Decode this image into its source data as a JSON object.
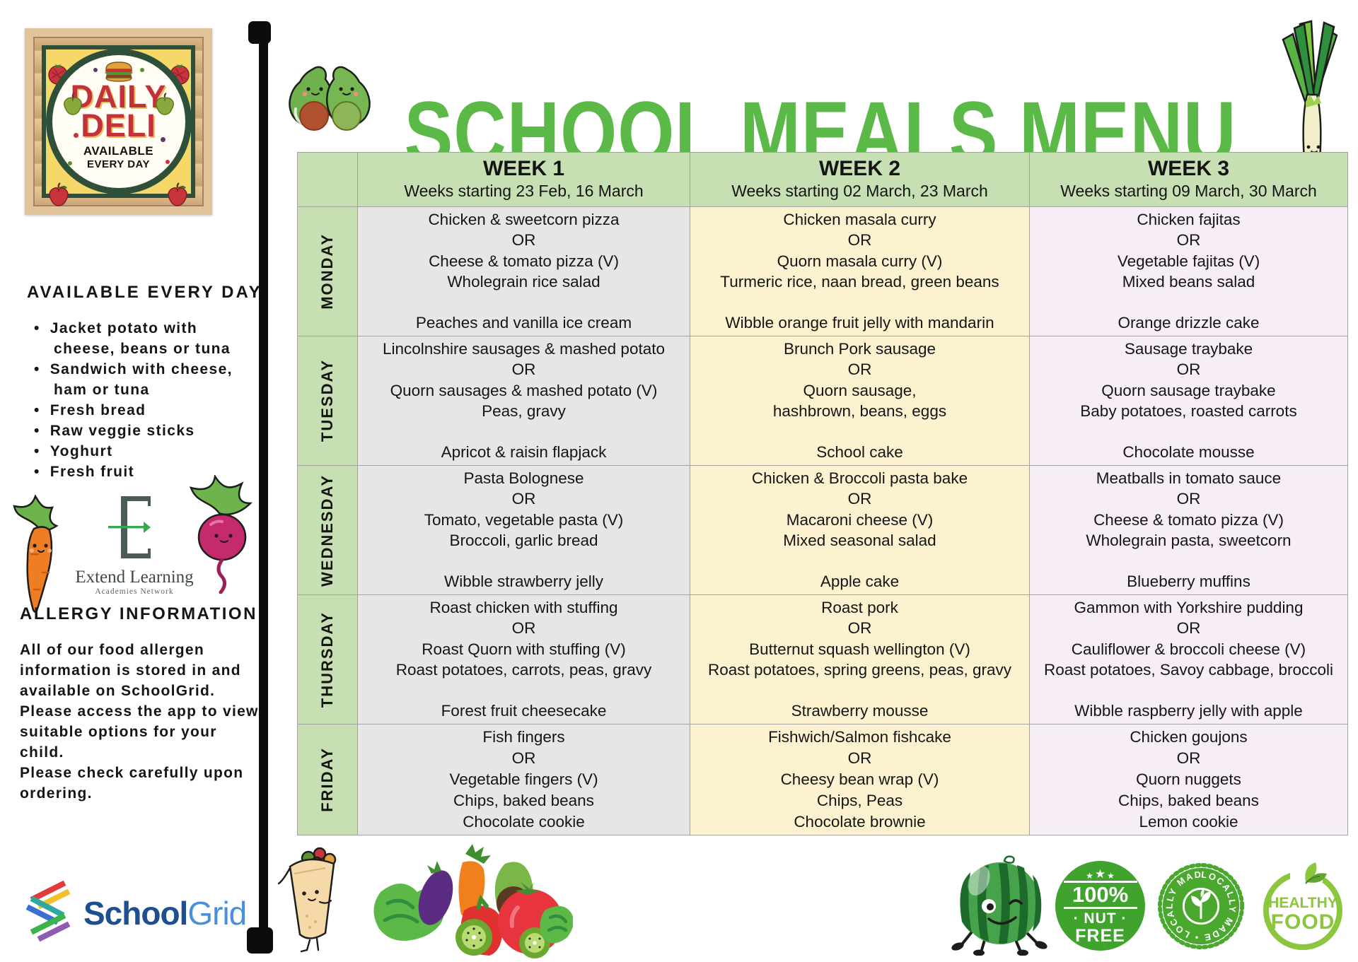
{
  "title": "SCHOOL MEALS MENU",
  "poster": {
    "title_line1": "DAILY",
    "title_line2": "DELI",
    "sub_line1": "AVAILABLE",
    "sub_line2": "EVERY DAY"
  },
  "sidebar": {
    "available_heading": "AVAILABLE EVERY DAY",
    "available_items": [
      "Jacket potato with cheese, beans or tuna",
      "Sandwich with cheese, ham or tuna",
      "Fresh bread",
      "Raw veggie sticks",
      "Yoghurt",
      "Fresh fruit"
    ],
    "extend_logo": {
      "letter": "E",
      "name": "Extend Learning",
      "subname": "Academies Network"
    },
    "allergy_heading": "ALLERGY INFORMATION",
    "allergy_lines": [
      "All of our food allergen information is stored in and available on SchoolGrid.",
      "Please access the app to view suitable options for your child.",
      "Please check carefully upon ordering."
    ],
    "schoolgrid_logo": {
      "part1": "School",
      "part2": "Grid"
    }
  },
  "menu": {
    "weeks": [
      {
        "label": "WEEK 1",
        "subtitle": "Weeks starting 23 Feb, 16 March"
      },
      {
        "label": "WEEK 2",
        "subtitle": "Weeks starting 02 March, 23 March"
      },
      {
        "label": "WEEK 3",
        "subtitle": "Weeks starting 09 March, 30 March"
      }
    ],
    "rows": [
      {
        "day": "MONDAY",
        "cells": [
          {
            "lines": [
              "Chicken & sweetcorn pizza",
              "OR",
              "Cheese & tomato pizza (V)",
              "Wholegrain rice salad",
              "",
              "Peaches and vanilla ice cream"
            ]
          },
          {
            "lines": [
              "Chicken masala curry",
              "OR",
              "Quorn masala curry (V)",
              "Turmeric rice, naan bread, green beans",
              "",
              "Wibble orange fruit jelly with mandarin"
            ]
          },
          {
            "lines": [
              "Chicken fajitas",
              "OR",
              "Vegetable fajitas (V)",
              "Mixed beans salad",
              "",
              "Orange drizzle cake"
            ]
          }
        ]
      },
      {
        "day": "TUESDAY",
        "cells": [
          {
            "lines": [
              "Lincolnshire sausages & mashed potato",
              "OR",
              "Quorn sausages & mashed potato (V)",
              "Peas, gravy",
              "",
              "Apricot & raisin flapjack"
            ]
          },
          {
            "lines": [
              "Brunch Pork sausage",
              "OR",
              "Quorn sausage,",
              "hashbrown, beans, eggs",
              "",
              "School cake"
            ]
          },
          {
            "lines": [
              "Sausage traybake",
              "OR",
              "Quorn sausage traybake",
              "Baby potatoes, roasted carrots",
              "",
              "Chocolate mousse"
            ]
          }
        ]
      },
      {
        "day": "WEDNESDAY",
        "cells": [
          {
            "lines": [
              "Pasta Bolognese",
              "OR",
              "Tomato, vegetable pasta (V)",
              "Broccoli, garlic bread",
              "",
              "Wibble strawberry jelly"
            ]
          },
          {
            "lines": [
              "Chicken & Broccoli pasta bake",
              "OR",
              "Macaroni cheese (V)",
              "Mixed seasonal salad",
              "",
              "Apple cake"
            ]
          },
          {
            "lines": [
              "Meatballs in tomato sauce",
              "OR",
              "Cheese & tomato pizza (V)",
              "Wholegrain pasta, sweetcorn",
              "",
              "Blueberry muffins"
            ]
          }
        ]
      },
      {
        "day": "THURSDAY",
        "cells": [
          {
            "lines": [
              "Roast chicken with stuffing",
              "OR",
              "Roast Quorn with stuffing (V)",
              "Roast potatoes, carrots, peas, gravy",
              "",
              "Forest fruit cheesecake"
            ]
          },
          {
            "lines": [
              "Roast pork",
              "OR",
              "Butternut squash wellington (V)",
              "Roast potatoes, spring greens, peas, gravy",
              "",
              "Strawberry mousse"
            ]
          },
          {
            "lines": [
              "Gammon with Yorkshire pudding",
              "OR",
              "Cauliflower & broccoli cheese (V)",
              "Roast potatoes, Savoy cabbage, broccoli",
              "",
              "Wibble raspberry jelly with apple"
            ]
          }
        ]
      },
      {
        "day": "FRIDAY",
        "cells": [
          {
            "lines": [
              "Fish fingers",
              "OR",
              "Vegetable fingers (V)",
              "Chips, baked beans",
              "Chocolate cookie"
            ]
          },
          {
            "lines": [
              "Fishwich/Salmon fishcake",
              "OR",
              "Cheesy bean wrap (V)",
              "Chips, Peas",
              "Chocolate brownie"
            ]
          },
          {
            "lines": [
              "Chicken goujons",
              "OR",
              "Quorn nuggets",
              "Chips, baked beans",
              "Lemon cookie"
            ]
          }
        ]
      }
    ]
  },
  "badges": {
    "nut_free": {
      "percent": "100%",
      "nut": "· NUT ·",
      "free": "FREE"
    },
    "locally_made_repeat": "LOCALLY MADE • LOCALLY MADE •",
    "healthy_food": {
      "line1": "HEALTHY",
      "line2": "FOOD"
    }
  },
  "colors": {
    "title_green": "#5BBA47",
    "table_header_green": "#C6E0B4",
    "week1_bg": "#E7E6E6",
    "week2_bg": "#FDF2CF",
    "week3_bg": "#F7EDF5",
    "deli_red": "#C4313C",
    "poster_yellow": "#F6D869",
    "poster_frame_green": "#2E4F39",
    "schoolgrid_dark_blue": "#1D4F91",
    "schoolgrid_light_blue": "#4A90D9",
    "badge_green": "#3FA32D",
    "healthy_badge_green": "#8CC63E"
  }
}
